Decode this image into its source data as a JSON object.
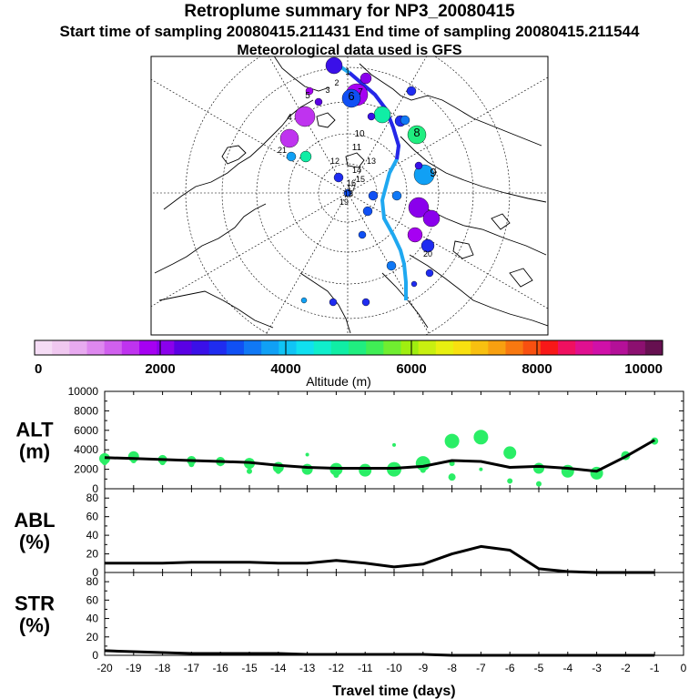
{
  "header": {
    "title": "Retroplume summary for NP3_20080415",
    "subtitle": "Start time of sampling 20080415.211431     End time of sampling 20080415.211544",
    "met_line": "Meteorological data used is GFS"
  },
  "colorbar": {
    "label": "Altitude  (m)",
    "ticks": [
      "0",
      "2000",
      "4000",
      "6000",
      "8000",
      "10000"
    ],
    "range": [
      0,
      10000
    ],
    "colors": [
      "#f5dcf5",
      "#f0c8f0",
      "#e8aaf0",
      "#de88ef",
      "#d060ee",
      "#bf33ef",
      "#a600f2",
      "#8a00ec",
      "#5a00e4",
      "#3a10e8",
      "#1f2cf0",
      "#1050f4",
      "#1078f5",
      "#10a0f5",
      "#10c4f5",
      "#10e0f0",
      "#10eecc",
      "#10eea5",
      "#20ee80",
      "#40ee55",
      "#70ee30",
      "#a0ee10",
      "#c8f010",
      "#e8f010",
      "#f8e010",
      "#f8c010",
      "#f8a010",
      "#f87810",
      "#f85010",
      "#f81818",
      "#f01060",
      "#e01090",
      "#d010a8",
      "#b41098",
      "#8c1070",
      "#661050"
    ],
    "major_every": 7
  },
  "map_labels": {
    "trajectory_points": [
      "1",
      "2",
      "3",
      "4",
      "5",
      "6",
      "7",
      "8",
      "9",
      "10",
      "11",
      "12",
      "13",
      "14",
      "15",
      "16",
      "17",
      "18",
      "19",
      "20",
      "21"
    ]
  },
  "chart_data": [
    {
      "type": "line+scatter",
      "panel": "ALT",
      "ylabel": "ALT (m)",
      "ylabel_lines": [
        "ALT",
        "(m)"
      ],
      "ylim": [
        0,
        10000
      ],
      "ytick_labels": [
        "0",
        "2000",
        "4000",
        "6000",
        "8000",
        "10000"
      ],
      "xlim": [
        -20,
        0
      ],
      "x": [
        -20,
        -19,
        -18,
        -17,
        -16,
        -15,
        -14,
        -13,
        -12,
        -11,
        -10,
        -9,
        -8,
        -7,
        -6,
        -5,
        -4,
        -3,
        -2,
        -1
      ],
      "mean_line": [
        3200,
        3100,
        3000,
        2900,
        2800,
        2700,
        2400,
        2200,
        2100,
        2100,
        2100,
        2300,
        2900,
        2800,
        2200,
        2300,
        2100,
        1800,
        3300,
        5000
      ],
      "points": {
        "x": [
          -20,
          -19,
          -18,
          -17,
          -16,
          -15,
          -14,
          -13,
          -12,
          -11,
          -10,
          -9,
          -8,
          -7,
          -6,
          -5,
          -4,
          -3,
          -2,
          -1,
          -20,
          -19,
          -18,
          -17,
          -15,
          -14,
          -12,
          -11,
          -9,
          -8,
          -6,
          -5,
          -16,
          -13,
          -10,
          -8,
          -7
        ],
        "y": [
          3100,
          3300,
          3000,
          2900,
          2800,
          2600,
          2200,
          2000,
          2000,
          1900,
          2000,
          2600,
          4900,
          5300,
          3700,
          2100,
          1800,
          1600,
          3400,
          4900,
          2700,
          2900,
          2700,
          2500,
          1800,
          1800,
          1400,
          1600,
          1900,
          1200,
          800,
          500,
          2500,
          3500,
          4500,
          2600,
          2000
        ],
        "sizes": [
          6,
          6,
          5,
          5,
          5,
          6,
          6,
          6,
          7,
          7,
          8,
          8,
          8,
          8,
          7,
          6,
          7,
          7,
          5,
          4,
          3,
          3,
          3,
          3,
          3,
          3,
          3,
          3,
          3,
          4,
          3,
          3,
          2,
          2,
          2,
          3,
          2
        ]
      },
      "color": "#2aee66"
    },
    {
      "type": "line",
      "panel": "ABL",
      "ylabel": "ABL (%)",
      "ylabel_lines": [
        "ABL",
        "(%)"
      ],
      "ylim": [
        0,
        90
      ],
      "ytick_labels": [
        "0",
        "20",
        "40",
        "60",
        "80"
      ],
      "xlim": [
        -20,
        0
      ],
      "x": [
        -20,
        -19,
        -18,
        -17,
        -16,
        -15,
        -14,
        -13,
        -12,
        -11,
        -10,
        -9,
        -8,
        -7,
        -6,
        -5,
        -4,
        -3,
        -2,
        -1
      ],
      "values": [
        10,
        10,
        10,
        11,
        11,
        11,
        10,
        10,
        13,
        10,
        6,
        9,
        20,
        28,
        24,
        4,
        1,
        0,
        0,
        0
      ]
    },
    {
      "type": "line",
      "panel": "STR",
      "ylabel": "STR (%)",
      "ylabel_lines": [
        "STR",
        "(%)"
      ],
      "ylim": [
        0,
        90
      ],
      "ytick_labels": [
        "0",
        "20",
        "40",
        "60",
        "80"
      ],
      "xlim": [
        -20,
        0
      ],
      "x": [
        -20,
        -19,
        -18,
        -17,
        -16,
        -15,
        -14,
        -13,
        -12,
        -11,
        -10,
        -9,
        -8,
        -7,
        -6,
        -5,
        -4,
        -3,
        -2,
        -1
      ],
      "values": [
        5,
        4,
        3,
        2,
        2,
        2,
        2,
        1,
        1,
        1,
        1,
        1,
        0,
        0,
        0,
        0,
        0,
        0,
        0,
        0
      ],
      "xlabel": "Travel time (days)",
      "xtick_labels": [
        "-20",
        "-19",
        "-18",
        "-17",
        "-16",
        "-15",
        "-14",
        "-13",
        "-12",
        "-11",
        "-10",
        "-9",
        "-8",
        "-7",
        "-6",
        "-5",
        "-4",
        "-3",
        "-2",
        "-1",
        "0"
      ]
    }
  ]
}
